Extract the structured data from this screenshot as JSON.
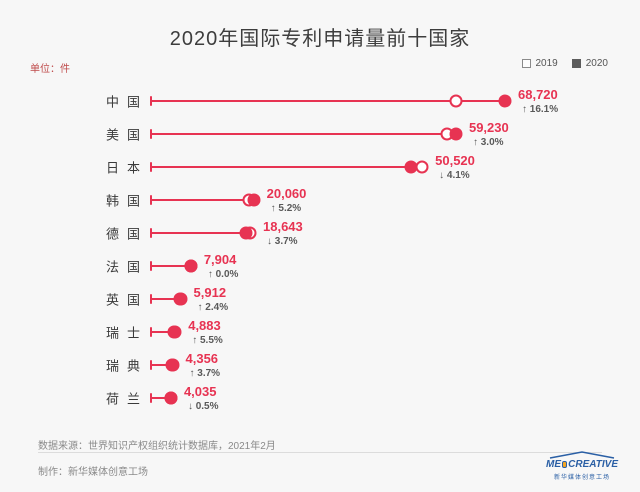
{
  "title": "2020年国际专利申请量前十国家",
  "unit_label": "单位：件",
  "accent_color": "#e73352",
  "legend": {
    "label_2019": "2019",
    "label_2020": "2020"
  },
  "rows": [
    {
      "country": "中国",
      "value_label": "68,720",
      "change_label": "↑ 16.1%",
      "direction": "up"
    },
    {
      "country": "美国",
      "value_label": "59,230",
      "change_label": "↑ 3.0%",
      "direction": "up"
    },
    {
      "country": "日本",
      "value_label": "50,520",
      "change_label": "↓ 4.1%",
      "direction": "down"
    },
    {
      "country": "韩国",
      "value_label": "20,060",
      "change_label": "↑ 5.2%",
      "direction": "up"
    },
    {
      "country": "德国",
      "value_label": "18,643",
      "change_label": "↓ 3.7%",
      "direction": "down"
    },
    {
      "country": "法国",
      "value_label": "7,904",
      "change_label": "↑ 0.0%",
      "direction": "up"
    },
    {
      "country": "英国",
      "value_label": "5,912",
      "change_label": "↑ 2.4%",
      "direction": "up"
    },
    {
      "country": "瑞士",
      "value_label": "4,883",
      "change_label": "↑ 5.5%",
      "direction": "up"
    },
    {
      "country": "瑞典",
      "value_label": "4,356",
      "change_label": "↑ 3.7%",
      "direction": "up"
    },
    {
      "country": "荷兰",
      "value_label": "4,035",
      "change_label": "↓ 0.5%",
      "direction": "down"
    }
  ],
  "chart_data": {
    "type": "bar",
    "subtype": "horizontal-dumbbell-lollipop",
    "title": "2020年国际专利申请量前十国家",
    "unit": "件",
    "categories": [
      "中国",
      "美国",
      "日本",
      "韩国",
      "德国",
      "法国",
      "英国",
      "瑞士",
      "瑞典",
      "荷兰"
    ],
    "series": [
      {
        "name": "2019",
        "marker": "hollow-circle",
        "estimated_from_pct_change": true,
        "values": [
          59190,
          57505,
          52680,
          19068,
          19359,
          7904,
          5773,
          4628,
          4201,
          4055
        ]
      },
      {
        "name": "2020",
        "marker": "filled-circle",
        "values": [
          68720,
          59230,
          50520,
          20060,
          18643,
          7904,
          5912,
          4883,
          4356,
          4035
        ]
      }
    ],
    "change_pct_2020_vs_2019": [
      16.1,
      3.0,
      -4.1,
      5.2,
      -3.7,
      0.0,
      2.4,
      5.5,
      3.7,
      -0.5
    ],
    "xlim": [
      0,
      70000
    ],
    "grid": false,
    "legend_position": "top-right"
  },
  "footer": {
    "source": "数据来源：世界知识产权组织统计数据库，2021年2月",
    "producer": "制作：新华媒体创意工场",
    "logo": {
      "text_left": "ME",
      "text_right": "CREATIVE",
      "caption": "新华媒体创意工场"
    }
  }
}
